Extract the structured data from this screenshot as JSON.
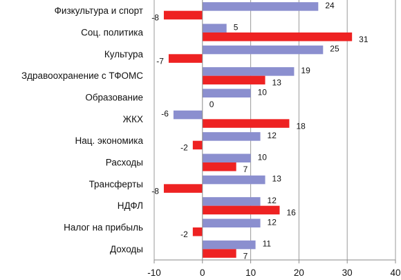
{
  "chart_data": {
    "type": "bar",
    "orientation": "horizontal",
    "categories": [
      "Физкультура и спорт",
      "Соц. политика",
      "Культура",
      "Здравоохранение  с ТФОМС",
      "Образование",
      "ЖКХ",
      "Нац. экономика",
      "Расходы",
      "Трансферты",
      "НДФЛ",
      "Налог на прибыль",
      "Доходы"
    ],
    "series": [
      {
        "color": "#8b8fcf",
        "values": [
          24,
          5,
          25,
          19,
          10,
          -6,
          12,
          10,
          13,
          12,
          12,
          11
        ]
      },
      {
        "color": "#ee2222",
        "values": [
          -8,
          31,
          -7,
          13,
          0,
          18,
          -2,
          7,
          -8,
          16,
          -2,
          7
        ]
      }
    ],
    "x_ticks": [
      -10,
      0,
      10,
      20,
      30,
      40
    ],
    "xlim": [
      -10,
      40
    ],
    "grid": "vertical",
    "title": "",
    "xlabel": "",
    "ylabel": ""
  }
}
